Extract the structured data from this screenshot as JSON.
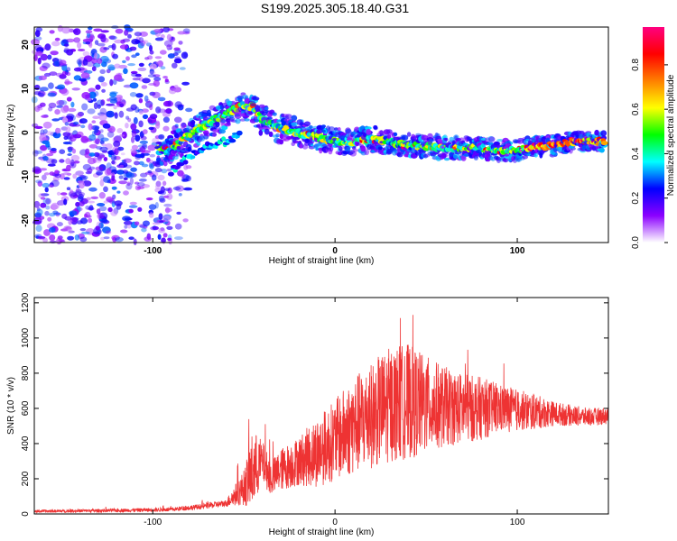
{
  "title": "S199.2025.305.18.40.G31",
  "chart_data": [
    {
      "type": "heatmap",
      "title": "S199.2025.305.18.40.G31",
      "xlabel": "Height of straight line (km)",
      "ylabel": "Frequency (Hz)",
      "xlim": [
        -165,
        150
      ],
      "ylim": [
        -25,
        24
      ],
      "xticks": [
        -100,
        0,
        100
      ],
      "yticks": [
        -20,
        -10,
        0,
        10,
        20
      ],
      "colorbar": {
        "label": "Normalized spectral amplitude",
        "range": [
          0,
          0.97
        ],
        "ticks": [
          0.0,
          0.2,
          0.4,
          0.6,
          0.8
        ],
        "tick_labels": [
          "0.0",
          "0.2",
          "0.4",
          "0.6",
          "0.8"
        ],
        "colors": [
          "#ffffff",
          "#8b00ff",
          "#0000ff",
          "#00ffff",
          "#00ff00",
          "#ffff00",
          "#ff8000",
          "#ff0000",
          "#ff0080"
        ]
      },
      "ridge": {
        "x": [
          -97,
          -90,
          -85,
          -78,
          -70,
          -60,
          -52,
          -45,
          -40,
          -30,
          -20,
          -10,
          0,
          10,
          20,
          30,
          40,
          50,
          60,
          70,
          80,
          90,
          100,
          110,
          120,
          130,
          140,
          148
        ],
        "freq": [
          -4,
          -4,
          -2,
          0,
          2,
          4,
          6,
          6,
          3,
          1,
          0,
          -1,
          -2,
          -2,
          -1.5,
          -2,
          -3,
          -3,
          -3.5,
          -3.5,
          -3.5,
          -4,
          -4,
          -3,
          -3,
          -2,
          -2,
          -2
        ]
      },
      "secondary_branch": {
        "x": [
          -90,
          -85,
          -78,
          -70,
          -60,
          -52
        ],
        "freq": [
          -9,
          -7,
          -5,
          -3,
          -2,
          0
        ]
      }
    },
    {
      "type": "line",
      "xlabel": "Height of straight line (km)",
      "ylabel": "SNR (10 * v/v)",
      "xlim": [
        -165,
        150
      ],
      "ylim": [
        0,
        1230
      ],
      "xticks": [
        -100,
        0,
        100
      ],
      "yticks": [
        0,
        200,
        400,
        600,
        800,
        1000,
        1200
      ],
      "series": [
        {
          "name": "SNR",
          "color": "#ee3333",
          "envelope_x": [
            -165,
            -120,
            -90,
            -75,
            -60,
            -50,
            -45,
            -40,
            -35,
            -30,
            -20,
            -10,
            0,
            10,
            20,
            30,
            40,
            50,
            60,
            70,
            80,
            90,
            100,
            110,
            120,
            130,
            140,
            150
          ],
          "envelope_mean": [
            15,
            20,
            25,
            40,
            60,
            150,
            250,
            300,
            200,
            250,
            300,
            350,
            420,
            500,
            560,
            620,
            640,
            620,
            610,
            600,
            600,
            600,
            590,
            580,
            570,
            560,
            550,
            560
          ],
          "envelope_amp": [
            8,
            10,
            12,
            15,
            20,
            100,
            230,
            120,
            100,
            120,
            140,
            200,
            230,
            280,
            300,
            330,
            330,
            280,
            230,
            200,
            180,
            140,
            120,
            100,
            70,
            60,
            50,
            50
          ]
        }
      ]
    }
  ]
}
